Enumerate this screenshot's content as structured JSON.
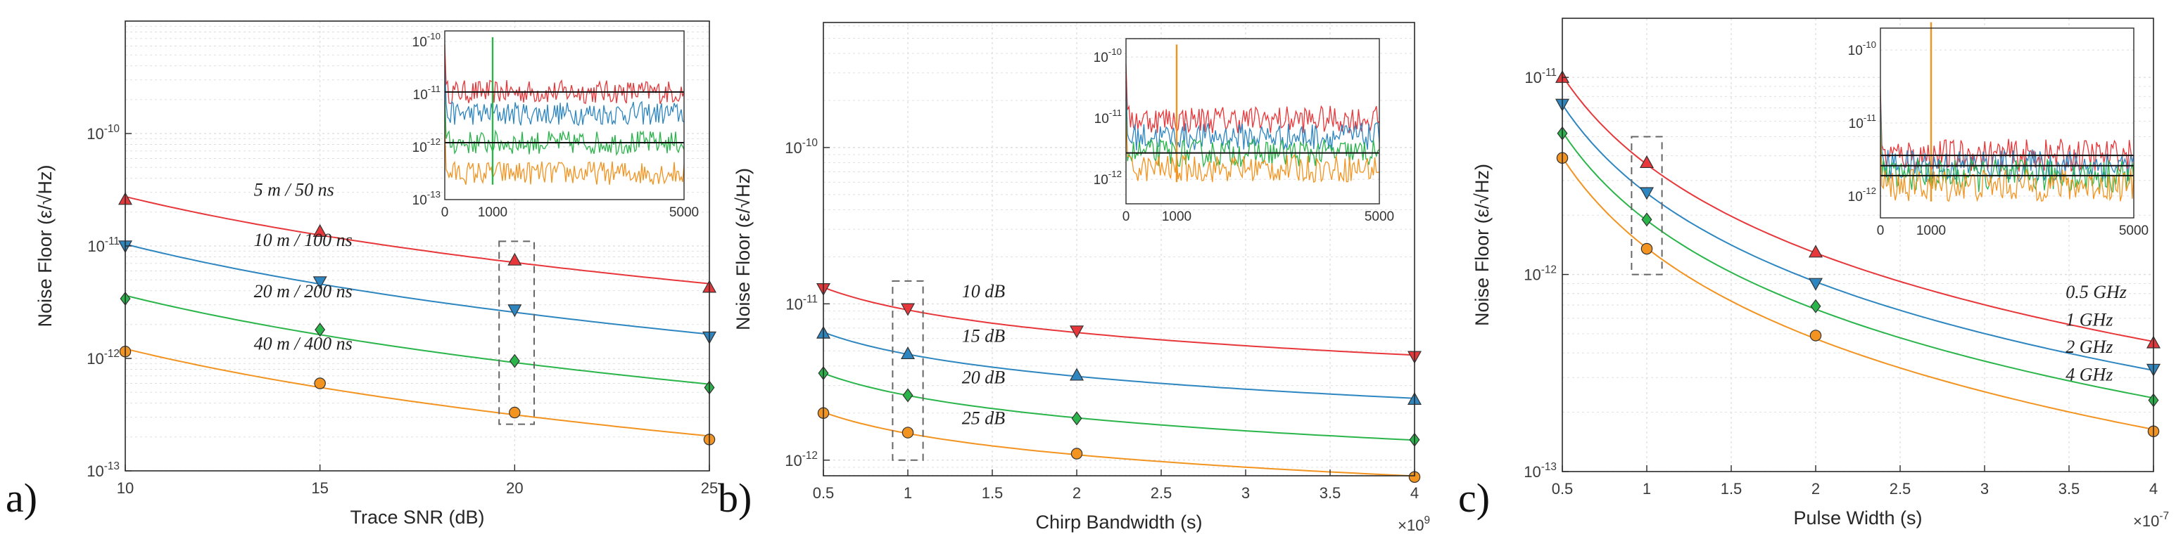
{
  "colors": {
    "red": "#e8373a",
    "blue": "#2e86c1",
    "green": "#2ab54a",
    "orange": "#f39320",
    "black": "#111111",
    "grid": "#dcdcdc",
    "frame": "#2a2a2a"
  },
  "chart_data": [
    {
      "type": "line",
      "panel_label": "a)",
      "xlabel": "Trace SNR (dB)",
      "ylabel": "Noise Floor (ε/√Hz)",
      "yscale": "log",
      "xlim": [
        10,
        25
      ],
      "ylim_exp": [
        -13,
        -9
      ],
      "xticks": [
        10,
        15,
        20,
        25
      ],
      "xtick_labels": [
        "10",
        "15",
        "20",
        "25"
      ],
      "yticks_exp": [
        -13,
        -12,
        -11,
        -10
      ],
      "ytick_labels": [
        "10^-13",
        "10^-12",
        "10^-11",
        "10^-10"
      ],
      "multiplier": "",
      "series": [
        {
          "name": "5 m / 50 ns",
          "color": "red",
          "marker": "triangle-up",
          "x": [
            10,
            15,
            20,
            25
          ],
          "y": [
            2.6e-11,
            1.35e-11,
            7.5e-12,
            4.3e-12
          ]
        },
        {
          "name": "10 m / 100 ns",
          "color": "blue",
          "marker": "triangle-down",
          "x": [
            10,
            15,
            20,
            25
          ],
          "y": [
            1e-11,
            4.8e-12,
            2.7e-12,
            1.55e-12
          ]
        },
        {
          "name": "20 m / 200 ns",
          "color": "green",
          "marker": "diamond",
          "x": [
            10,
            15,
            20,
            25
          ],
          "y": [
            3.4e-12,
            1.8e-12,
            9.5e-13,
            5.5e-13
          ]
        },
        {
          "name": "40 m / 400 ns",
          "color": "orange",
          "marker": "circle",
          "x": [
            10,
            15,
            20,
            25
          ],
          "y": [
            1.15e-12,
            6e-13,
            3.3e-13,
            1.9e-13
          ]
        }
      ],
      "inset": {
        "xlim": [
          0,
          5000
        ],
        "xticks": [
          0,
          1000,
          5000
        ],
        "xtick_labels": [
          "0",
          "1000",
          "5000"
        ],
        "ylim_exp": [
          -13,
          -9.8
        ],
        "yticks_exp": [
          -13,
          -12,
          -11,
          -10
        ],
        "ytick_labels": [
          "10^-13",
          "10^-12",
          "10^-11",
          "10^-10"
        ],
        "levels": [
          {
            "color": "red",
            "level": 1.1e-11
          },
          {
            "color": "blue",
            "level": 4.3e-12
          },
          {
            "color": "green",
            "level": 1.2e-12
          },
          {
            "color": "orange",
            "level": 3.2e-13
          }
        ],
        "black_lines": [
          1.1e-11,
          1.2e-12
        ],
        "spike_x": 1000,
        "spike_peak": 1.2e-10,
        "spike_color": "green"
      }
    },
    {
      "type": "line",
      "panel_label": "b)",
      "xlabel": "Chirp Bandwidth (s)",
      "ylabel": "Noise Floor (ε/√Hz)",
      "yscale": "log",
      "xlim": [
        0.5,
        4
      ],
      "ylim_exp": [
        -12.1,
        -9.2
      ],
      "xticks": [
        0.5,
        1,
        1.5,
        2,
        2.5,
        3,
        3.5,
        4
      ],
      "xtick_labels": [
        "0.5",
        "1",
        "1.5",
        "2",
        "2.5",
        "3",
        "3.5",
        "4"
      ],
      "yticks_exp": [
        -12,
        -11,
        -10
      ],
      "ytick_labels": [
        "10^-12",
        "10^-11",
        "10^-10"
      ],
      "multiplier": "×10^9",
      "series": [
        {
          "name": "10 dB",
          "color": "red",
          "marker": "triangle-down",
          "x": [
            0.5,
            1,
            2,
            4
          ],
          "y": [
            1.25e-11,
            9.3e-12,
            6.7e-12,
            4.6e-12
          ]
        },
        {
          "name": "15 dB",
          "color": "blue",
          "marker": "triangle-up",
          "x": [
            0.5,
            1,
            2,
            4
          ],
          "y": [
            6.5e-12,
            4.8e-12,
            3.5e-12,
            2.45e-12
          ]
        },
        {
          "name": "20 dB",
          "color": "green",
          "marker": "diamond",
          "x": [
            0.5,
            1,
            2,
            4
          ],
          "y": [
            3.6e-12,
            2.6e-12,
            1.85e-12,
            1.35e-12
          ]
        },
        {
          "name": "25 dB",
          "color": "orange",
          "marker": "circle",
          "x": [
            0.5,
            1,
            2,
            4
          ],
          "y": [
            2e-12,
            1.5e-12,
            1.1e-12,
            7.8e-13
          ]
        }
      ],
      "inset": {
        "xlim": [
          0,
          5000
        ],
        "xticks": [
          0,
          1000,
          5000
        ],
        "xtick_labels": [
          "0",
          "1000",
          "5000"
        ],
        "ylim_exp": [
          -12.4,
          -9.7
        ],
        "yticks_exp": [
          -12,
          -11,
          -10
        ],
        "ytick_labels": [
          "10^-12",
          "10^-11",
          "10^-10"
        ],
        "levels": [
          {
            "color": "red",
            "level": 9.5e-12
          },
          {
            "color": "blue",
            "level": 5e-12
          },
          {
            "color": "green",
            "level": 2.7e-12
          },
          {
            "color": "orange",
            "level": 1.5e-12
          }
        ],
        "black_lines": [
          2.7e-12
        ],
        "spike_x": 1000,
        "spike_peak": 1.6e-10,
        "spike_color": "orange"
      }
    },
    {
      "type": "line",
      "panel_label": "c)",
      "xlabel": "Pulse Width (s)",
      "ylabel": "Noise Floor (ε/√Hz)",
      "yscale": "log",
      "xlim": [
        0.5,
        4
      ],
      "ylim_exp": [
        -13,
        -10.7
      ],
      "xticks": [
        0.5,
        1,
        1.5,
        2,
        2.5,
        3,
        3.5,
        4
      ],
      "xtick_labels": [
        "0.5",
        "1",
        "1.5",
        "2",
        "2.5",
        "3",
        "3.5",
        "4"
      ],
      "yticks_exp": [
        -13,
        -12,
        -11
      ],
      "ytick_labels": [
        "10^-13",
        "10^-12",
        "10^-11"
      ],
      "multiplier": "×10^-7",
      "series": [
        {
          "name": "0.5 GHz",
          "color": "red",
          "marker": "triangle-up",
          "x": [
            0.5,
            1,
            2,
            4
          ],
          "y": [
            1e-11,
            3.7e-12,
            1.3e-12,
            4.5e-13
          ]
        },
        {
          "name": "1 GHz",
          "color": "blue",
          "marker": "triangle-down",
          "x": [
            0.5,
            1,
            2,
            4
          ],
          "y": [
            7.3e-12,
            2.6e-12,
            9e-13,
            3.3e-13
          ]
        },
        {
          "name": "2 GHz",
          "color": "green",
          "marker": "diamond",
          "x": [
            0.5,
            1,
            2,
            4
          ],
          "y": [
            5.2e-12,
            1.9e-12,
            6.9e-13,
            2.3e-13
          ]
        },
        {
          "name": "4 GHz",
          "color": "orange",
          "marker": "circle",
          "x": [
            0.5,
            1,
            2,
            4
          ],
          "y": [
            3.9e-12,
            1.35e-12,
            4.9e-13,
            1.6e-13
          ]
        }
      ],
      "inset": {
        "xlim": [
          0,
          5000
        ],
        "xticks": [
          0,
          1000,
          5000
        ],
        "xtick_labels": [
          "0",
          "1000",
          "5000"
        ],
        "ylim_exp": [
          -12.3,
          -9.7
        ],
        "yticks_exp": [
          -12,
          -11,
          -10
        ],
        "ytick_labels": [
          "10^-12",
          "10^-11",
          "10^-10"
        ],
        "levels": [
          {
            "color": "red",
            "level": 3.6e-12
          },
          {
            "color": "blue",
            "level": 2.6e-12
          },
          {
            "color": "green",
            "level": 1.9e-12
          },
          {
            "color": "orange",
            "level": 1.4e-12
          }
        ],
        "black_lines": [
          3.6e-12,
          2.6e-12,
          1.9e-12
        ],
        "spike_x": 1000,
        "spike_peak": 2.4e-10,
        "spike_color": "orange"
      }
    }
  ]
}
